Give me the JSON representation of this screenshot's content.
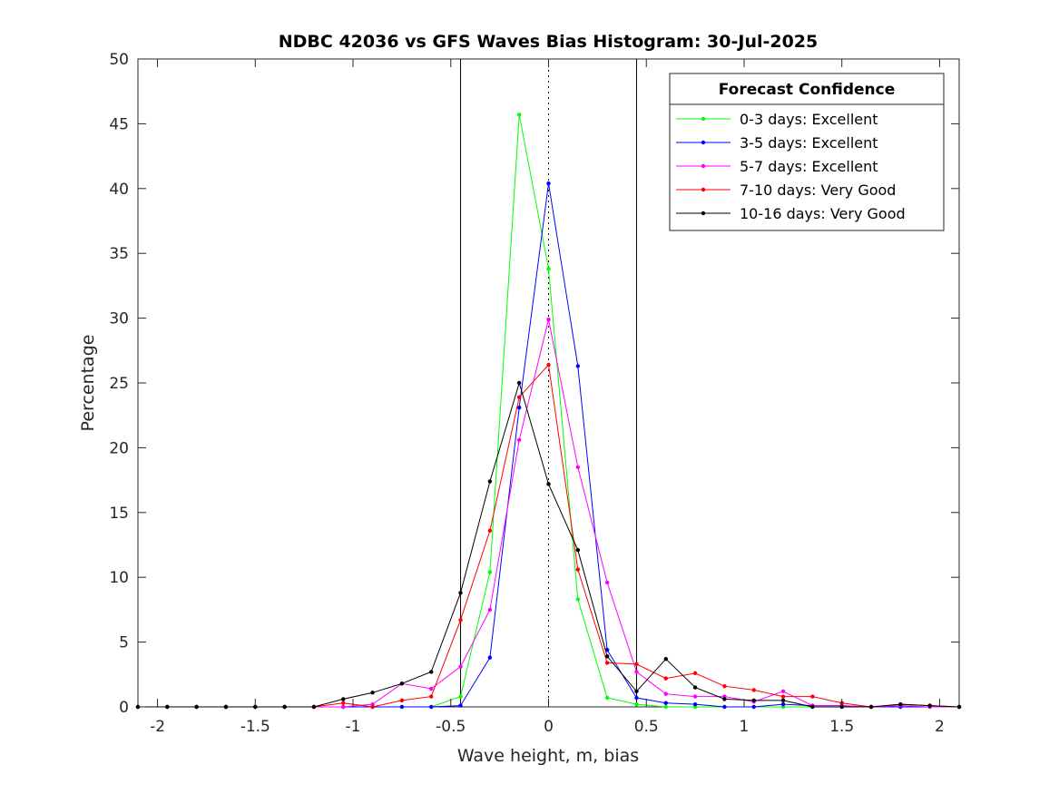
{
  "chart_data": {
    "type": "line",
    "title": "NDBC 42036 vs GFS Waves Bias Histogram: 30-Jul-2025",
    "xlabel": "Wave height, m, bias",
    "ylabel": "Percentage",
    "xlim": [
      -2.1,
      2.1
    ],
    "ylim": [
      0,
      50
    ],
    "xticks": [
      -2,
      -1.5,
      -1,
      -0.5,
      0,
      0.5,
      1,
      1.5,
      2
    ],
    "xtick_labels": [
      "-2",
      "-1.5",
      "-1",
      "-0.5",
      "0",
      "0.5",
      "1",
      "1.5",
      "2"
    ],
    "yticks": [
      0,
      5,
      10,
      15,
      20,
      25,
      30,
      35,
      40,
      45,
      50
    ],
    "ytick_labels": [
      "0",
      "5",
      "10",
      "15",
      "20",
      "25",
      "30",
      "35",
      "40",
      "45",
      "50"
    ],
    "grid": false,
    "legend_title": "Forecast Confidence",
    "legend_position": "top-right",
    "vertical_lines": [
      {
        "x": -0.45,
        "style": "solid"
      },
      {
        "x": 0.45,
        "style": "solid"
      },
      {
        "x": 0,
        "style": "dotted"
      }
    ],
    "x": [
      -2.1,
      -1.95,
      -1.8,
      -1.65,
      -1.5,
      -1.35,
      -1.2,
      -1.05,
      -0.9,
      -0.75,
      -0.6,
      -0.45,
      -0.3,
      -0.15,
      0,
      0.15,
      0.3,
      0.45,
      0.6,
      0.75,
      0.9,
      1.05,
      1.2,
      1.35,
      1.5,
      1.65,
      1.8,
      1.95,
      2.1
    ],
    "series": [
      {
        "name": "0-3 days: Excellent",
        "color": "#00ff00",
        "values": [
          0,
          0,
          0,
          0,
          0,
          0,
          0,
          0,
          0,
          0,
          0,
          0.8,
          10.4,
          45.7,
          33.8,
          8.3,
          0.7,
          0.2,
          0,
          0,
          0,
          0,
          0,
          0,
          0,
          0,
          0,
          0,
          0
        ]
      },
      {
        "name": "3-5 days: Excellent",
        "color": "#0000ff",
        "values": [
          0,
          0,
          0,
          0,
          0,
          0,
          0,
          0,
          0,
          0,
          0,
          0.1,
          3.8,
          23.1,
          40.4,
          26.3,
          4.4,
          0.7,
          0.3,
          0.2,
          0,
          0,
          0.2,
          0.1,
          0.1,
          0,
          0,
          0,
          0
        ]
      },
      {
        "name": "5-7 days: Excellent",
        "color": "#ff00ff",
        "values": [
          0,
          0,
          0,
          0,
          0,
          0,
          0,
          0,
          0.2,
          1.8,
          1.4,
          3.1,
          7.5,
          20.6,
          29.9,
          18.5,
          9.6,
          2.7,
          1.0,
          0.8,
          0.8,
          0.4,
          1.2,
          0.1,
          0.1,
          0,
          0.1,
          0,
          0
        ]
      },
      {
        "name": "7-10 days: Very Good",
        "color": "#ff0000",
        "values": [
          0,
          0,
          0,
          0,
          0,
          0,
          0,
          0.3,
          0,
          0.5,
          0.8,
          6.7,
          13.6,
          23.9,
          26.4,
          10.6,
          3.4,
          3.3,
          2.2,
          2.6,
          1.6,
          1.3,
          0.8,
          0.8,
          0.3,
          0,
          0.2,
          0.1,
          0
        ]
      },
      {
        "name": "10-16 days: Very Good",
        "color": "#000000",
        "values": [
          0,
          0,
          0,
          0,
          0,
          0,
          0,
          0.6,
          1.1,
          1.8,
          2.7,
          8.8,
          17.4,
          25.0,
          17.2,
          12.1,
          3.9,
          1.2,
          3.7,
          1.5,
          0.6,
          0.5,
          0.5,
          0,
          0,
          0,
          0.2,
          0.1,
          0
        ]
      }
    ]
  }
}
